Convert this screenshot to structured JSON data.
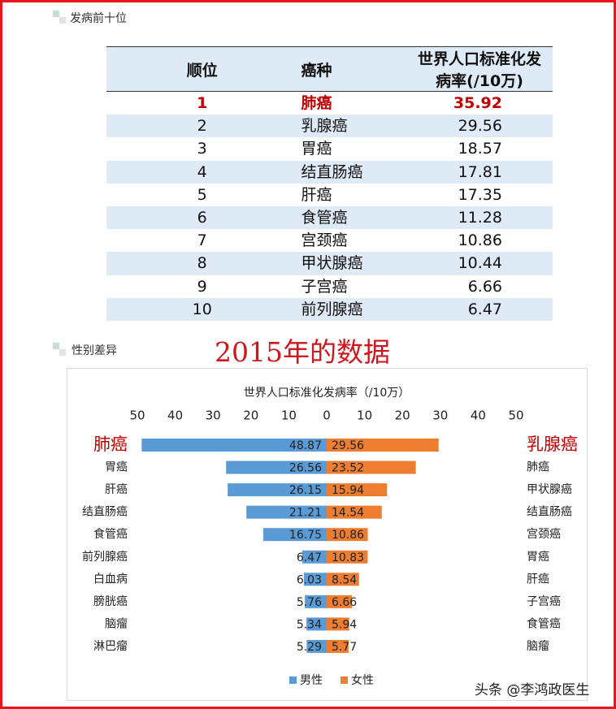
{
  "section1": {
    "title": "发病前十位"
  },
  "table": {
    "headers": [
      "顺位",
      "癌种",
      "世界人口标准化发病率(/10万)"
    ],
    "rows": [
      [
        1,
        "肺癌",
        35.92
      ],
      [
        2,
        "乳腺癌",
        29.56
      ],
      [
        3,
        "胃癌",
        18.57
      ],
      [
        4,
        "结直肠癌",
        17.81
      ],
      [
        5,
        "肝癌",
        17.35
      ],
      [
        6,
        "食管癌",
        11.28
      ],
      [
        7,
        "宫颈癌",
        10.86
      ],
      [
        8,
        "甲状腺癌",
        10.44
      ],
      [
        9,
        "子宫癌",
        6.66
      ],
      [
        10,
        "前列腺癌",
        6.47
      ]
    ]
  },
  "section2": {
    "title": "性别差异"
  },
  "banner": "2015年的数据",
  "chart_data": {
    "type": "butterfly",
    "title": "世界人口标准化发病率（/10万）",
    "xlim": [
      0,
      50
    ],
    "xticks": [
      0,
      10,
      20,
      30,
      40,
      50
    ],
    "legend": "bottom",
    "series": [
      {
        "name": "男性",
        "color": "#5b9bd5",
        "categories": [
          "肺癌",
          "胃癌",
          "肝癌",
          "结直肠癌",
          "食管癌",
          "前列腺癌",
          "白血病",
          "膀胱癌",
          "脑瘤",
          "淋巴瘤"
        ],
        "values": [
          48.87,
          26.56,
          26.15,
          21.21,
          16.75,
          6.47,
          6.03,
          5.76,
          5.34,
          5.29
        ]
      },
      {
        "name": "女性",
        "color": "#ed7d31",
        "categories": [
          "乳腺癌",
          "肺癌",
          "甲状腺癌",
          "结直肠癌",
          "宫颈癌",
          "胃癌",
          "肝癌",
          "子宫癌",
          "食管癌",
          "脑瘤"
        ],
        "values": [
          29.56,
          23.52,
          15.94,
          14.54,
          10.86,
          10.83,
          8.54,
          6.66,
          5.94,
          5.77
        ]
      }
    ]
  },
  "watermark": "头条 @李鸿政医生"
}
